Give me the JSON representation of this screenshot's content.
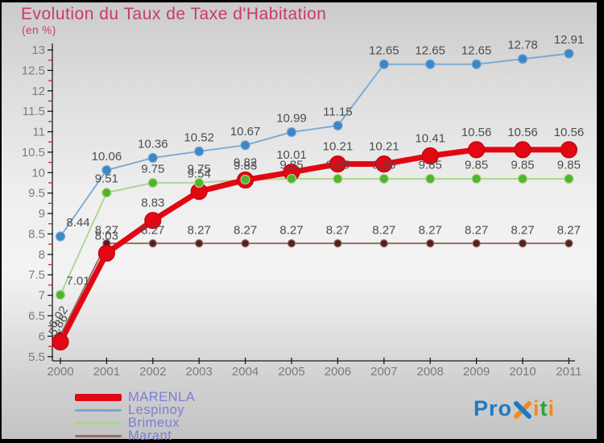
{
  "title": "Evolution du Taux de Taxe d'Habitation",
  "subtitle": "(en %)",
  "colors": {
    "title": "#c93a69",
    "axis": "#1a1a1a",
    "minor_tick": "#cc2222",
    "tick_label": "#7c7c7c",
    "data_label": "#4d4d4d",
    "legend_text": "#7d7dd6"
  },
  "chart_data": {
    "type": "line",
    "title": "Evolution du Taux de Taxe d'Habitation",
    "subtitle": "(en %)",
    "categories": [
      "2000",
      "2001",
      "2002",
      "2003",
      "2004",
      "2005",
      "2006",
      "2007",
      "2008",
      "2009",
      "2010",
      "2011"
    ],
    "ylim": [
      5.5,
      13
    ],
    "ytick_step": 0.5,
    "ytick_labels": [
      "13",
      "12.5",
      "12",
      "11.5",
      "11",
      "10.5",
      "10",
      "9.5",
      "9",
      "8.5",
      "8",
      "7.5",
      "7",
      "6.5",
      "6",
      "5.5"
    ],
    "grid": false,
    "legend_position": "bottom-left",
    "series": [
      {
        "name": "MARENLA",
        "line_color": "#e30613",
        "marker_color": "#e30613",
        "marker_stroke": "#c10510",
        "line_width": 7,
        "marker_radius": 10,
        "values": [
          5.86,
          8.03,
          8.83,
          9.54,
          9.82,
          10.01,
          10.21,
          10.21,
          10.41,
          10.56,
          10.56,
          10.56
        ]
      },
      {
        "name": "Lespinoy",
        "line_color": "#74a7d2",
        "marker_color": "#3e86c6",
        "marker_stroke": "#74a7d2",
        "line_width": 1.8,
        "marker_radius": 5.5,
        "values": [
          8.44,
          10.06,
          10.36,
          10.52,
          10.67,
          10.99,
          11.15,
          12.65,
          12.65,
          12.65,
          12.78,
          12.91
        ]
      },
      {
        "name": "Brimeux",
        "line_color": "#a9d589",
        "marker_color": "#50b42c",
        "marker_stroke": "#a9d589",
        "line_width": 1.8,
        "marker_radius": 5.5,
        "values": [
          7.01,
          9.51,
          9.75,
          9.75,
          9.83,
          9.85,
          9.85,
          9.85,
          9.85,
          9.85,
          9.85,
          9.85
        ]
      },
      {
        "name": "Marant",
        "line_color": "#937067",
        "marker_color": "#571e1e",
        "marker_stroke": "#916a64",
        "line_width": 2,
        "marker_radius": 4.5,
        "values": [
          6.02,
          8.27,
          8.27,
          8.27,
          8.27,
          8.27,
          8.27,
          8.27,
          8.27,
          8.27,
          8.27,
          8.27
        ]
      }
    ],
    "rotated_point_labels": [
      {
        "series": "MARENLA",
        "category": "2000",
        "text": "5.86"
      },
      {
        "series": "Marant",
        "category": "2000",
        "text": "6.02"
      }
    ]
  },
  "legend": {
    "items": [
      {
        "label": "MARENLA",
        "color": "#e30613",
        "thick": true
      },
      {
        "label": "Lespinoy",
        "color": "#74a7d2",
        "thick": false
      },
      {
        "label": "Brimeux",
        "color": "#a9d589",
        "thick": false
      },
      {
        "label": "Marant",
        "color": "#937067",
        "thick": false
      }
    ]
  },
  "logo": {
    "text": "Proxiti",
    "letters": [
      {
        "ch": "P",
        "color": "#1c7ac2"
      },
      {
        "ch": "r",
        "color": "#1c7ac2"
      },
      {
        "ch": "o",
        "color": "#1c7ac2"
      },
      {
        "ch": "x",
        "color": "special-cross"
      },
      {
        "ch": "i",
        "color": "#f28a1d"
      },
      {
        "ch": "t",
        "color": "#2fa237"
      },
      {
        "ch": "i",
        "color": "#f28a1d"
      }
    ],
    "cross_color_1": "#f28a1d",
    "cross_color_2": "#1c7ac2"
  }
}
